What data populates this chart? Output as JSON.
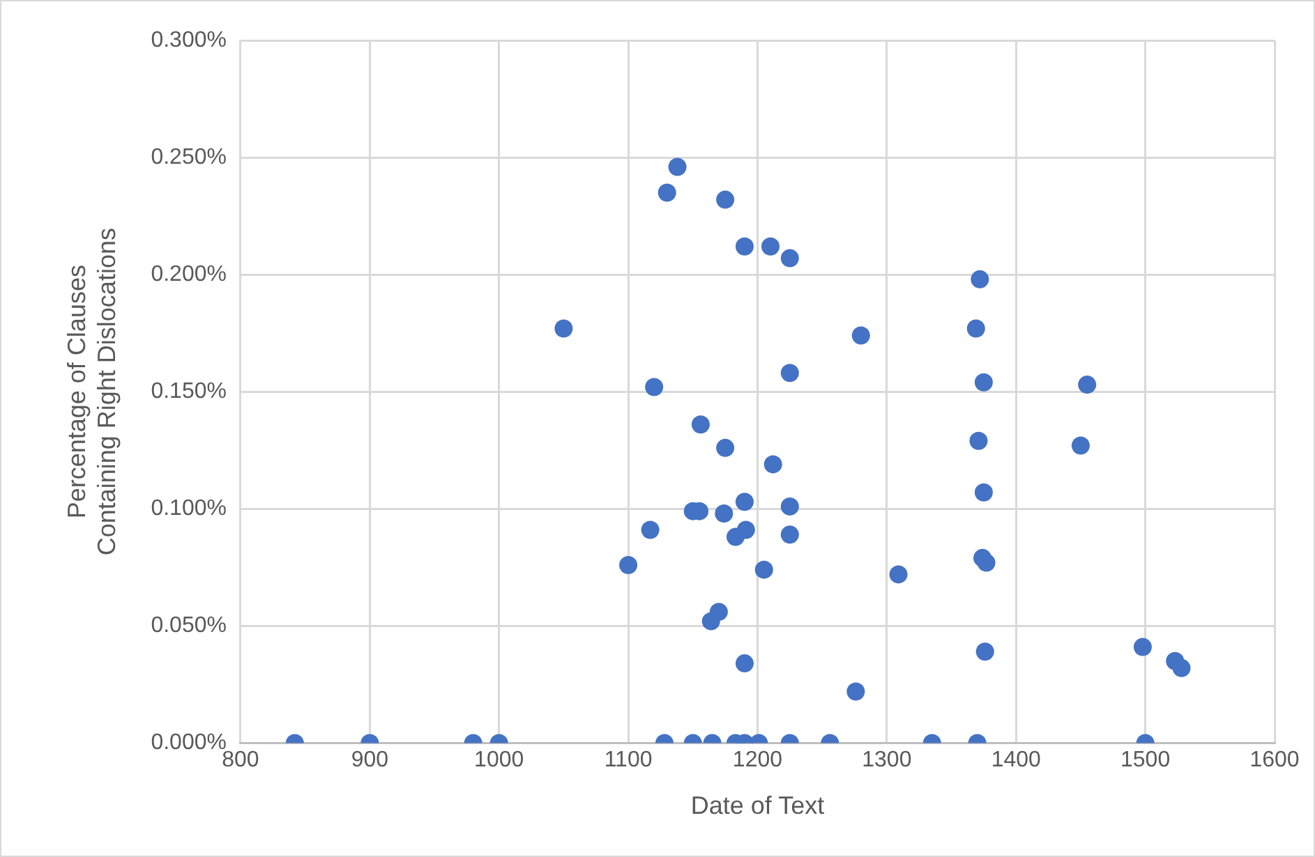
{
  "chart_data": {
    "type": "scatter",
    "xlabel": "Date of Text",
    "ylabel": "Percentage of Clauses Containing Right Dislocations",
    "x": [
      842,
      900,
      980,
      1000,
      1050,
      1100,
      1117,
      1120,
      1128,
      1130,
      1138,
      1150,
      1156,
      1150,
      1155,
      1165,
      1164,
      1170,
      1175,
      1174,
      1175,
      1183,
      1183,
      1190,
      1190,
      1191,
      1190,
      1190,
      1201,
      1205,
      1210,
      1212,
      1225,
      1225,
      1225,
      1225,
      1225,
      1256,
      1276,
      1280,
      1309,
      1335,
      1369,
      1370,
      1371,
      1372,
      1374,
      1375,
      1375,
      1376,
      1377,
      1450,
      1455,
      1498,
      1500,
      1523,
      1528
    ],
    "series": [
      {
        "color": "#4472c4",
        "values": [
          0,
          0,
          0,
          0,
          0.177,
          0.076,
          0.091,
          0.152,
          0,
          0.235,
          0.246,
          0,
          0.136,
          0.099,
          0.099,
          0,
          0.052,
          0.056,
          0.232,
          0.098,
          0.126,
          0.088,
          0,
          0.212,
          0.103,
          0.091,
          0.034,
          0,
          0,
          0.074,
          0.212,
          0.119,
          0.207,
          0.158,
          0.101,
          0.089,
          0,
          0,
          0.022,
          0.174,
          0.072,
          0,
          0.177,
          0,
          0.129,
          0.198,
          0.079,
          0.154,
          0.107,
          0.039,
          0.077,
          0.127,
          0.153,
          0.041,
          0,
          0.035,
          0.032
        ]
      }
    ],
    "xlim": [
      800,
      1600
    ],
    "xticks": [
      800,
      900,
      1000,
      1100,
      1200,
      1300,
      1400,
      1500,
      1600
    ],
    "ylim": [
      0,
      0.3
    ],
    "yticks": [
      {
        "value": 0,
        "label": "0.000%"
      },
      {
        "value": 0.05,
        "label": "0.050%"
      },
      {
        "value": 0.1,
        "label": "0.100%"
      },
      {
        "value": 0.15,
        "label": "0.150%"
      },
      {
        "value": 0.2,
        "label": "0.200%"
      },
      {
        "value": 0.25,
        "label": "0.250%"
      },
      {
        "value": 0.3,
        "label": "0.300%"
      }
    ],
    "grid": true,
    "legend": false,
    "marker": "circle"
  }
}
